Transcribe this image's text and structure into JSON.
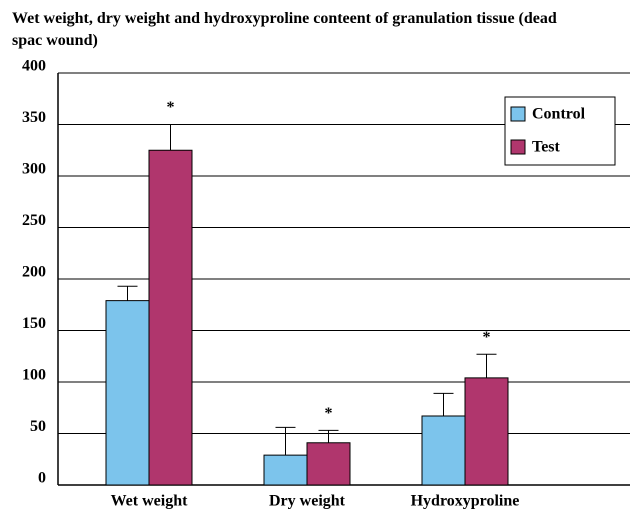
{
  "chart_data": {
    "type": "bar",
    "title": "Wet weight, dry weight and hydroxyproline conteent of granulation tissue (dead spac wound)",
    "categories": [
      "Wet weight",
      "Dry weight",
      "Hydroxyproline"
    ],
    "series": [
      {
        "name": "Control",
        "color": "#7cc4ec",
        "values": [
          179,
          29,
          67
        ],
        "errors": [
          14,
          27,
          22
        ],
        "annotations": [
          null,
          null,
          null
        ]
      },
      {
        "name": "Test",
        "color": "#b0366d",
        "values": [
          325,
          41,
          104
        ],
        "errors": [
          25,
          12,
          23
        ],
        "annotations": [
          "*",
          "*",
          "*"
        ]
      }
    ],
    "ylim": [
      0,
      400
    ],
    "yticks": [
      0,
      50,
      100,
      150,
      200,
      250,
      300,
      350,
      400
    ],
    "grid": true,
    "legend": "upper right"
  }
}
